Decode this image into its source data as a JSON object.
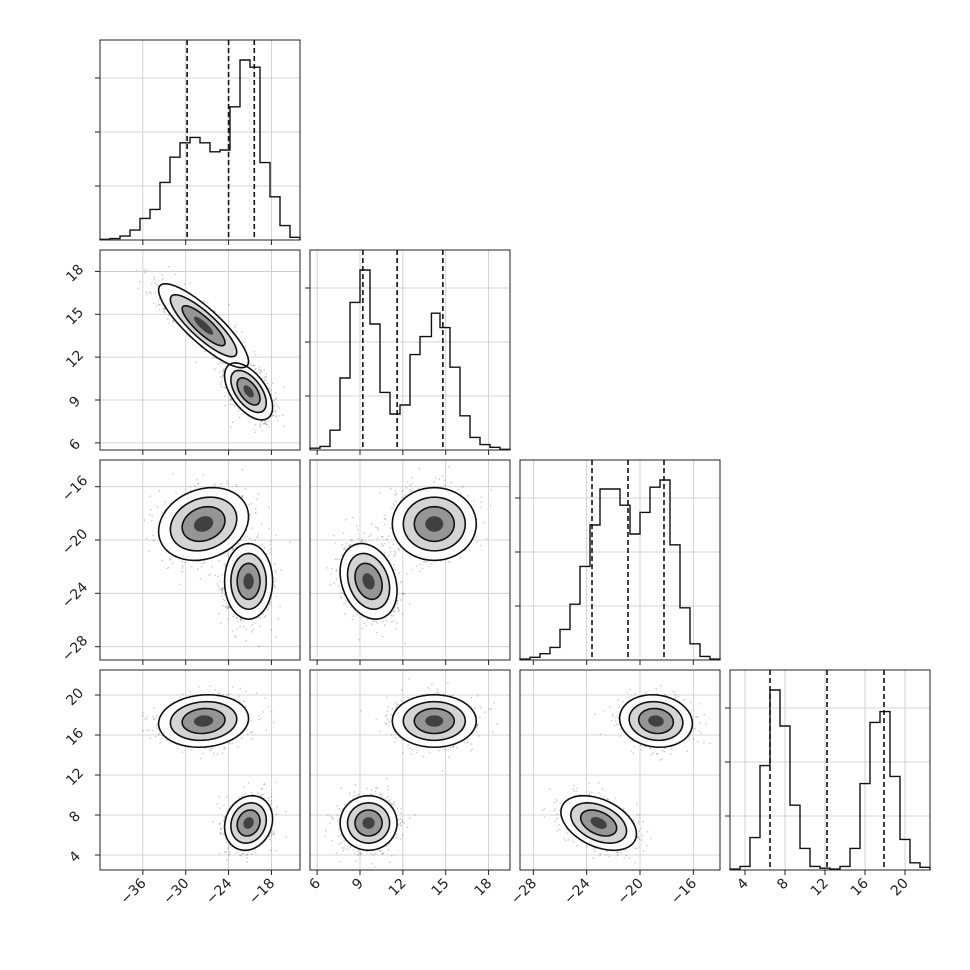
{
  "chart_data": {
    "type": "corner",
    "grid": true,
    "params": [
      {
        "id": "p0",
        "range": [
          -42,
          -14
        ],
        "ticks": [
          -36,
          -30,
          -24,
          -18
        ],
        "tick_labels": [
          "−36",
          "−30",
          "−24",
          "−18"
        ],
        "quantiles": [
          -29.8,
          -24.0,
          -20.4
        ],
        "hist": {
          "edges": [
            -42,
            -40.6,
            -39.2,
            -37.8,
            -36.4,
            -35,
            -33.6,
            -32.2,
            -30.8,
            -29.4,
            -28,
            -26.6,
            -25.2,
            -23.8,
            -22.4,
            -21,
            -19.6,
            -18.2,
            -16.8,
            -15.4,
            -14
          ],
          "counts": [
            0.4,
            0.8,
            2.2,
            5.5,
            12,
            17,
            32,
            46,
            54,
            57,
            54,
            49,
            50,
            74,
            100,
            96,
            43,
            24,
            8,
            1.5
          ]
        }
      },
      {
        "id": "p1",
        "range": [
          5.5,
          19.5
        ],
        "ticks": [
          6,
          9,
          12,
          15,
          18
        ],
        "tick_labels": [
          "6",
          "9",
          "12",
          "15",
          "18"
        ],
        "quantiles": [
          9.2,
          11.6,
          14.8
        ],
        "hist": {
          "edges": [
            5.5,
            6.2,
            6.9,
            7.6,
            8.3,
            9,
            9.7,
            10.4,
            11.1,
            11.8,
            12.5,
            13.2,
            14.0,
            14.6,
            15.3,
            16,
            16.7,
            17.4,
            18.1,
            18.8,
            19.5
          ],
          "counts": [
            1,
            2,
            11,
            40,
            82,
            100,
            70,
            32,
            20,
            25,
            53,
            63,
            76,
            68,
            46,
            19,
            7,
            3,
            1.5,
            0.4
          ]
        }
      },
      {
        "id": "p2",
        "range": [
          -29,
          -14
        ],
        "ticks": [
          -28,
          -24,
          -20,
          -16
        ],
        "tick_labels": [
          "−28",
          "−24",
          "−20",
          "−16"
        ],
        "quantiles": [
          -23.6,
          -20.9,
          -18.2
        ],
        "hist": {
          "edges": [
            -29,
            -28.25,
            -27.5,
            -26.75,
            -26,
            -25.25,
            -24.5,
            -23.75,
            -23,
            -22.25,
            -21.5,
            -20.75,
            -20,
            -19.25,
            -18.5,
            -17.75,
            -17,
            -16.25,
            -15.5,
            -14.75,
            -14
          ],
          "counts": [
            0.5,
            1.5,
            3.5,
            7,
            17,
            31,
            52,
            75,
            95,
            95,
            86,
            70,
            82,
            96,
            100,
            64,
            29,
            9,
            2,
            0.5
          ]
        }
      },
      {
        "id": "p3",
        "range": [
          2.5,
          22.5
        ],
        "ticks": [
          4,
          8,
          12,
          16,
          20
        ],
        "tick_labels": [
          "4",
          "8",
          "12",
          "16",
          "20"
        ],
        "quantiles": [
          6.5,
          12.2,
          17.9
        ],
        "hist": {
          "edges": [
            2.5,
            3.5,
            4.5,
            5.5,
            6.5,
            7.5,
            8.5,
            9.5,
            10.5,
            11.5,
            12.5,
            13.5,
            14.5,
            15.5,
            16.5,
            17.5,
            18.5,
            19.5,
            20.5,
            21.5,
            22.5
          ],
          "counts": [
            0.5,
            2,
            18,
            58,
            100,
            80,
            36,
            12,
            2,
            1,
            0.5,
            2,
            12,
            48,
            82,
            88,
            52,
            17,
            4,
            1.5
          ]
        }
      }
    ],
    "modes": [
      {
        "weight": 0.45,
        "mean": [
          -27.5,
          14.2,
          -18.8,
          17.4
        ],
        "sd": [
          3.0,
          1.4,
          1.3,
          1.25
        ],
        "corr": {
          "0-1": -0.85,
          "0-2": 0.2,
          "0-3": 0.1,
          "1-2": 0.0,
          "1-3": 0.0,
          "2-3": -0.1
        }
      },
      {
        "weight": 0.55,
        "mean": [
          -21.2,
          9.6,
          -23.1,
          7.2
        ],
        "sd": [
          1.6,
          0.95,
          1.35,
          1.3
        ],
        "corr": {
          "0-1": -0.55,
          "0-2": 0.0,
          "0-3": 0.15,
          "1-2": -0.25,
          "1-3": 0.0,
          "2-3": -0.4
        }
      }
    ]
  }
}
